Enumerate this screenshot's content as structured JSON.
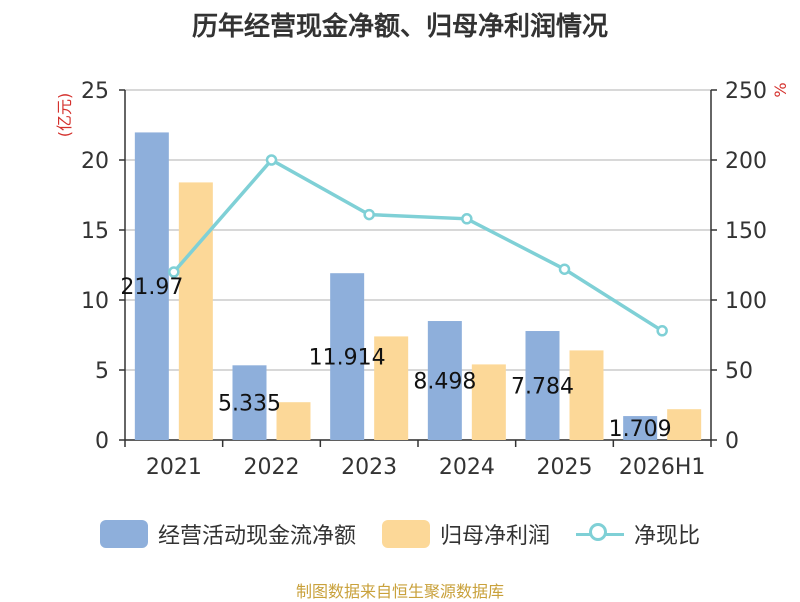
{
  "chart_data": {
    "type": "bar",
    "title": "历年经营现金净额、归母净利润情况",
    "categories": [
      "2021",
      "2022",
      "2023",
      "2024",
      "2025",
      "2026H1"
    ],
    "series": [
      {
        "name": "经营活动现金流净额",
        "type": "bar",
        "axis": "left",
        "color": "#8eafdb",
        "values": [
          21.97,
          5.335,
          11.914,
          8.498,
          7.784,
          1.709
        ],
        "labels": [
          "21.97",
          "5.335",
          "11.914",
          "8.498",
          "7.784",
          "1.709"
        ]
      },
      {
        "name": "归母净利润",
        "type": "bar",
        "axis": "left",
        "color": "#fcd898",
        "values": [
          18.4,
          2.7,
          7.4,
          5.4,
          6.4,
          2.2
        ]
      },
      {
        "name": "净现比",
        "type": "line",
        "axis": "right",
        "color": "#7fd0d6",
        "values": [
          120,
          200,
          161,
          158,
          122,
          78
        ]
      }
    ],
    "left_axis": {
      "unit": "(亿元)",
      "min": 0,
      "max": 25,
      "ticks": [
        0,
        5,
        10,
        15,
        20,
        25
      ]
    },
    "right_axis": {
      "unit": "%",
      "min": 0,
      "max": 250,
      "ticks": [
        0,
        50,
        100,
        150,
        200,
        250
      ]
    },
    "grid": true,
    "legend_position": "bottom"
  },
  "source": "制图数据来自恒生聚源数据库"
}
